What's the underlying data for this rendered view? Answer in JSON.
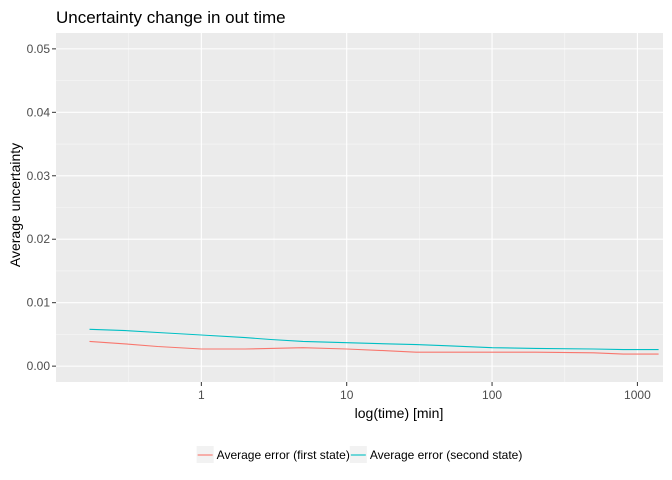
{
  "chart_data": {
    "type": "line",
    "title": "Uncertainty change in out time",
    "xlabel": "log(time) [min]",
    "ylabel": "Average uncertainty",
    "x_scale": "log10",
    "xlim": [
      0.1,
      1500
    ],
    "ylim": [
      -0.0025,
      0.0525
    ],
    "x_ticks": [
      1,
      10,
      100,
      1000
    ],
    "x_tick_labels": [
      "1",
      "10",
      "100",
      "1000"
    ],
    "y_ticks": [
      0.0,
      0.01,
      0.02,
      0.03,
      0.04,
      0.05
    ],
    "y_tick_labels": [
      "0.00",
      "0.01",
      "0.02",
      "0.03",
      "0.04",
      "0.05"
    ],
    "grid": true,
    "legend_position": "bottom",
    "series": [
      {
        "name": "Average error (first state)",
        "color": "#F8766D",
        "x": [
          0.17,
          0.3,
          0.5,
          1,
          2,
          3,
          5,
          10,
          20,
          30,
          50,
          100,
          200,
          500,
          800,
          1400
        ],
        "y": [
          0.0039,
          0.0035,
          0.0031,
          0.0027,
          0.0027,
          0.0028,
          0.0029,
          0.0027,
          0.0024,
          0.0022,
          0.0022,
          0.0022,
          0.0022,
          0.0021,
          0.0019,
          0.0019
        ]
      },
      {
        "name": "Average error (second state)",
        "color": "#00BFC4",
        "x": [
          0.17,
          0.3,
          0.5,
          1,
          2,
          3,
          5,
          10,
          20,
          30,
          50,
          100,
          200,
          500,
          800,
          1400
        ],
        "y": [
          0.0058,
          0.0056,
          0.0053,
          0.0049,
          0.0045,
          0.0042,
          0.0039,
          0.0037,
          0.0035,
          0.0034,
          0.0032,
          0.0029,
          0.0028,
          0.0027,
          0.0026,
          0.0026
        ]
      }
    ]
  }
}
